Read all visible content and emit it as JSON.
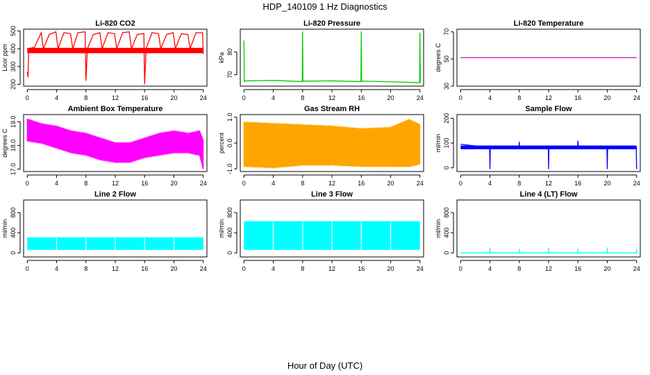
{
  "title": "HDP_140109 1 Hz Diagnostics",
  "xlabel": "Hour of Day (UTC)",
  "chart_data": [
    {
      "type": "line",
      "title": "Li-820 CO2",
      "ylabel": "Licor ppm",
      "color": "#ff0000",
      "xlim": [
        -0.5,
        24.5
      ],
      "ylim": [
        190,
        510
      ],
      "yticks": [
        "200",
        "300",
        "400",
        "500"
      ],
      "xticks": [
        "0",
        "4",
        "8",
        "12",
        "16",
        "20",
        "24"
      ],
      "baseline": [
        [
          0,
          395
        ],
        [
          24,
          395
        ]
      ],
      "band": [
        375,
        405
      ],
      "series": [
        {
          "name": "",
          "x": [
            0,
            0.1,
            0.2,
            1.0,
            1.9,
            2.2,
            3.0,
            3.9,
            4.2,
            5.0,
            5.9,
            6.2,
            6.9,
            7.9,
            8.0,
            8.2,
            9.0,
            9.9,
            10.2,
            11.0,
            11.9,
            12.2,
            13.0,
            13.9,
            14.2,
            15.0,
            15.9,
            16.0,
            16.2,
            17.0,
            17.9,
            18.2,
            19.0,
            19.9,
            20.2,
            21.0,
            21.9,
            22.2,
            23.0,
            23.9,
            24.0
          ],
          "y": [
            270,
            240,
            400,
            410,
            490,
            400,
            480,
            495,
            400,
            490,
            485,
            400,
            490,
            495,
            220,
            400,
            480,
            490,
            400,
            490,
            485,
            400,
            490,
            495,
            400,
            480,
            485,
            200,
            400,
            490,
            485,
            400,
            480,
            490,
            400,
            485,
            480,
            400,
            490,
            490,
            370
          ]
        }
      ]
    },
    {
      "type": "line",
      "title": "Li-820 Pressure",
      "ylabel": "kPa",
      "color": "#00cc00",
      "xlim": [
        -0.5,
        24.5
      ],
      "ylim": [
        65,
        90
      ],
      "yticks": [
        "70",
        "80"
      ],
      "xticks": [
        "0",
        "4",
        "8",
        "12",
        "16",
        "20",
        "24"
      ],
      "series": [
        {
          "name": "",
          "x": [
            0,
            0.05,
            0.2,
            4,
            7.95,
            8,
            8.05,
            12,
            15.95,
            16,
            16.05,
            20,
            23.95,
            24,
            24.05
          ],
          "y": [
            85,
            67,
            67.3,
            67.5,
            67,
            89,
            67.2,
            67.3,
            67,
            89,
            67.2,
            66.9,
            66.5,
            88.5,
            66.5
          ]
        }
      ]
    },
    {
      "type": "line",
      "title": "Li-820 Temperature",
      "ylabel": "degrees C",
      "color": "#cc00cc",
      "xlim": [
        -0.5,
        24.5
      ],
      "ylim": [
        30,
        72
      ],
      "yticks": [
        "30",
        "50",
        "70"
      ],
      "xticks": [
        "0",
        "4",
        "8",
        "12",
        "16",
        "20",
        "24"
      ],
      "series": [
        {
          "name": "",
          "x": [
            0,
            24
          ],
          "y": [
            51,
            51
          ]
        }
      ]
    },
    {
      "type": "area",
      "title": "Ambient Box Temperature",
      "ylabel": "degrees C",
      "color": "#ff00ff",
      "xlim": [
        -0.5,
        24.5
      ],
      "ylim": [
        16.9,
        19.3
      ],
      "yticks": [
        "17.0",
        "18.0",
        "19.0"
      ],
      "xticks": [
        "0",
        "4",
        "8",
        "12",
        "16",
        "20",
        "24"
      ],
      "series": [
        {
          "name": "upper",
          "x": [
            0,
            2,
            4,
            6,
            8,
            10,
            12,
            14,
            16,
            18,
            20,
            22,
            23.5,
            24
          ],
          "y": [
            19.1,
            18.9,
            18.8,
            18.6,
            18.5,
            18.3,
            18.1,
            18.1,
            18.3,
            18.5,
            18.6,
            18.5,
            18.6,
            18.2
          ]
        },
        {
          "name": "lower",
          "x": [
            0,
            2,
            4,
            6,
            8,
            10,
            12,
            14,
            16,
            18,
            20,
            22,
            23.5,
            24
          ],
          "y": [
            18.2,
            18.1,
            17.9,
            17.7,
            17.6,
            17.4,
            17.3,
            17.3,
            17.5,
            17.6,
            17.7,
            17.7,
            17.6,
            17.0
          ]
        }
      ]
    },
    {
      "type": "area",
      "title": "Gas Stream RH",
      "ylabel": "percent",
      "color": "#ffa500",
      "xlim": [
        -0.5,
        24.5
      ],
      "ylim": [
        -1.1,
        1.1
      ],
      "yticks": [
        "-1.0",
        "0.0",
        "1.0"
      ],
      "xticks": [
        "0",
        "4",
        "8",
        "12",
        "16",
        "20",
        "24"
      ],
      "series": [
        {
          "name": "upper",
          "x": [
            0,
            4,
            8,
            12,
            16,
            20,
            22.5,
            24
          ],
          "y": [
            0.8,
            0.75,
            0.7,
            0.65,
            0.55,
            0.6,
            0.9,
            0.7
          ]
        },
        {
          "name": "lower",
          "x": [
            0,
            4,
            8,
            12,
            16,
            20,
            22.5,
            24
          ],
          "y": [
            -0.9,
            -0.95,
            -0.85,
            -0.85,
            -0.9,
            -0.9,
            -0.9,
            -0.8
          ]
        }
      ]
    },
    {
      "type": "line",
      "title": "Sample Flow",
      "ylabel": "ml/min",
      "color": "#0000ff",
      "xlim": [
        -0.5,
        24.5
      ],
      "ylim": [
        -15,
        215
      ],
      "yticks": [
        "0",
        "100",
        "200"
      ],
      "xticks": [
        "0",
        "4",
        "8",
        "12",
        "16",
        "20",
        "24"
      ],
      "band": [
        75,
        90
      ],
      "series": [
        {
          "name": "",
          "x": [
            0,
            3.95,
            4,
            4.05,
            7.95,
            8,
            8.05,
            11.95,
            12,
            12.05,
            15.95,
            16,
            16.05,
            19.95,
            20,
            20.05,
            23.95,
            24
          ],
          "y": [
            95,
            82,
            -5,
            82,
            82,
            105,
            82,
            82,
            -5,
            82,
            82,
            110,
            82,
            82,
            -5,
            82,
            82,
            -5
          ]
        }
      ]
    },
    {
      "type": "area",
      "title": "Line 2 Flow",
      "ylabel": "ml/min",
      "color": "#00ffff",
      "xlim": [
        -0.5,
        24.5
      ],
      "ylim": [
        -80,
        1050
      ],
      "yticks": [
        "0",
        "400",
        "800"
      ],
      "xticks": [
        "0",
        "4",
        "8",
        "12",
        "16",
        "20",
        "24"
      ],
      "band": [
        60,
        300
      ],
      "gaps": [
        4,
        8,
        12,
        16,
        20
      ],
      "series": [
        {
          "name": "",
          "x": [
            0,
            24
          ],
          "y": [
            300,
            300
          ]
        }
      ]
    },
    {
      "type": "area",
      "title": "Line 3 Flow",
      "ylabel": "ml/min",
      "color": "#00ffff",
      "xlim": [
        -0.5,
        24.5
      ],
      "ylim": [
        -80,
        1050
      ],
      "yticks": [
        "0",
        "400",
        "800"
      ],
      "xticks": [
        "0",
        "4",
        "8",
        "12",
        "16",
        "20",
        "24"
      ],
      "band": [
        60,
        620
      ],
      "gaps": [
        4,
        8,
        12,
        16,
        20
      ],
      "series": [
        {
          "name": "",
          "x": [
            0,
            24
          ],
          "y": [
            620,
            620
          ]
        }
      ]
    },
    {
      "type": "line",
      "title": "Line 4 (LT) Flow",
      "ylabel": "ml/min",
      "color": "#00ffff",
      "xlim": [
        -0.5,
        24.5
      ],
      "ylim": [
        -80,
        1050
      ],
      "yticks": [
        "0",
        "400",
        "800"
      ],
      "xticks": [
        "0",
        "4",
        "8",
        "12",
        "16",
        "20",
        "24"
      ],
      "series": [
        {
          "name": "",
          "x": [
            0,
            3.98,
            4,
            4.02,
            7.98,
            8,
            8.02,
            11.98,
            12,
            12.02,
            15.98,
            16,
            16.02,
            19.98,
            20,
            20.02,
            23.98,
            24,
            24.02
          ],
          "y": [
            0,
            0,
            110,
            0,
            0,
            80,
            0,
            0,
            110,
            0,
            0,
            80,
            0,
            0,
            110,
            0,
            0,
            80,
            0
          ]
        }
      ]
    }
  ]
}
